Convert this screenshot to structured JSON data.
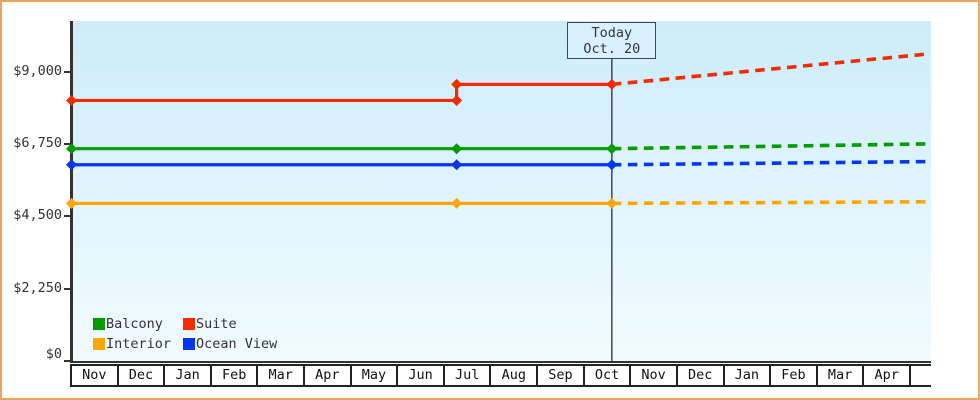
{
  "page": {
    "border_color": "#eba55e",
    "background": "#ffffff"
  },
  "chart_data": {
    "type": "line",
    "title": "",
    "unit": "USD",
    "y_axis": {
      "ticks": [
        {
          "label": "$9,000",
          "value": 9000
        },
        {
          "label": "$6,750",
          "value": 6750
        },
        {
          "label": "$4,500",
          "value": 4500
        },
        {
          "label": "$2,250",
          "value": 2250
        },
        {
          "label": "$0",
          "value": 0
        }
      ],
      "range": [
        0,
        10570
      ],
      "grid": false
    },
    "x_axis": {
      "months": [
        "Nov",
        "Dec",
        "Jan",
        "Feb",
        "Mar",
        "Apr",
        "May",
        "Jun",
        "Jul",
        "Aug",
        "Sep",
        "Oct",
        "Nov",
        "Dec",
        "Jan",
        "Feb",
        "Mar",
        "Apr"
      ]
    },
    "today": {
      "label_line1": "Today",
      "label_line2": "Oct. 20",
      "month_float": 11.645
    },
    "forecast_end_month_float": 18.5,
    "series": [
      {
        "name": "Suite",
        "color": "#f22b00",
        "points": [
          {
            "month_float": 0,
            "value": 8100
          },
          {
            "month_float": 8.3,
            "value": 8100
          },
          {
            "month_float": 8.3,
            "value": 8600
          },
          {
            "month_float": 11.645,
            "value": 8600
          }
        ],
        "forecast_value": 9550
      },
      {
        "name": "Balcony",
        "color": "#009c00",
        "points": [
          {
            "month_float": 0,
            "value": 6600
          },
          {
            "month_float": 8.3,
            "value": 6600
          },
          {
            "month_float": 11.645,
            "value": 6600
          }
        ],
        "forecast_value": 6750
      },
      {
        "name": "Ocean View",
        "color": "#0637f0",
        "points": [
          {
            "month_float": 0,
            "value": 6100
          },
          {
            "month_float": 8.3,
            "value": 6100
          },
          {
            "month_float": 11.645,
            "value": 6100
          }
        ],
        "forecast_value": 6200
      },
      {
        "name": "Interior",
        "color": "#ffa60a",
        "points": [
          {
            "month_float": 0,
            "value": 4900
          },
          {
            "month_float": 8.3,
            "value": 4900
          },
          {
            "month_float": 11.645,
            "value": 4900
          }
        ],
        "forecast_value": 4950
      }
    ],
    "legend": {
      "position": "bottom-left-inside",
      "entries": [
        {
          "label": "Balcony",
          "color": "#009c00"
        },
        {
          "label": "Suite",
          "color": "#f22b00"
        },
        {
          "label": "Interior",
          "color": "#ffa60a"
        },
        {
          "label": "Ocean View",
          "color": "#0637f0"
        }
      ]
    }
  }
}
